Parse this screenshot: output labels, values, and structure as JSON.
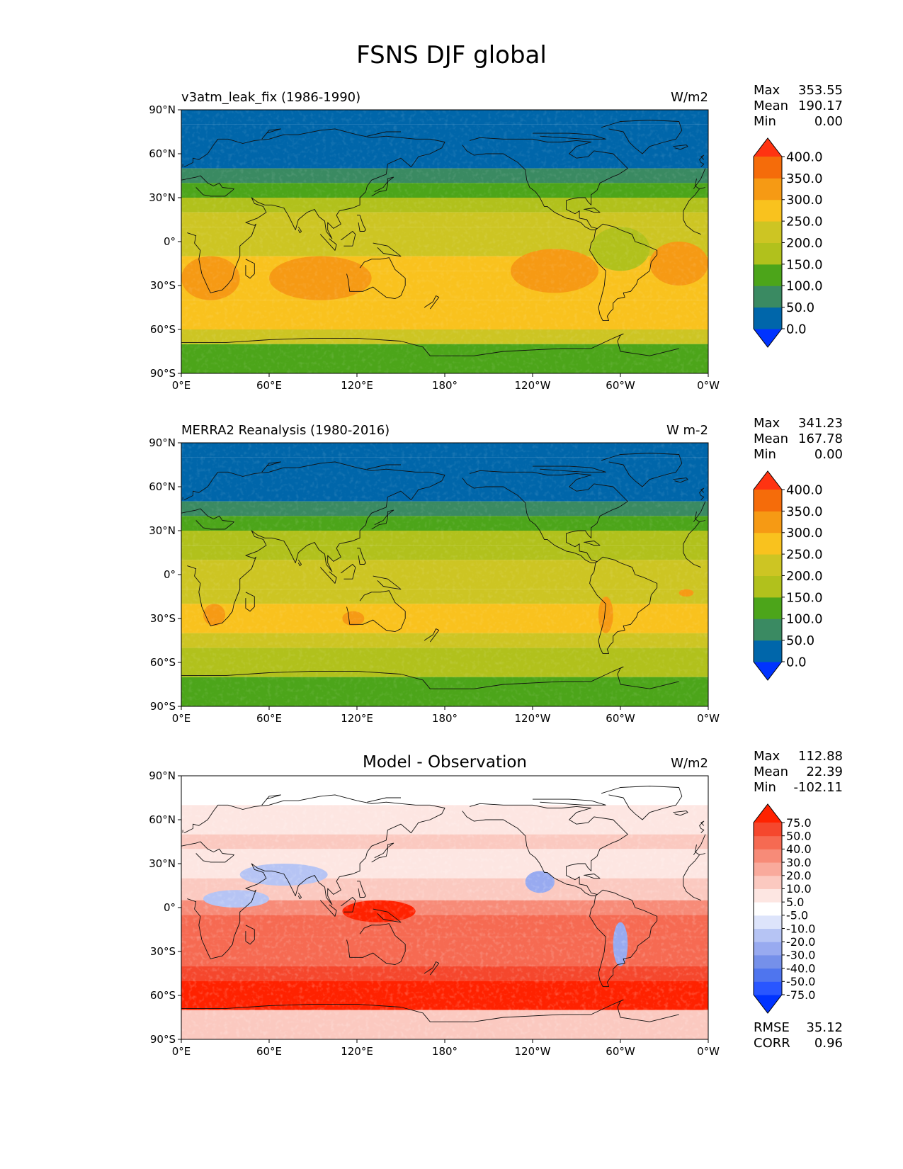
{
  "figure": {
    "title": "FSNS DJF global"
  },
  "panels": [
    {
      "left_title": "v3atm_leak_fix (1986-1990)",
      "center_title": "",
      "units": "W/m2",
      "stats": [
        {
          "label": "Max",
          "value": "353.55"
        },
        {
          "label": "Mean",
          "value": "190.17"
        },
        {
          "label": "Min",
          "value": "0.00"
        }
      ],
      "extra_stats": []
    },
    {
      "left_title": "MERRA2 Reanalysis (1980-2016)",
      "center_title": "",
      "units": "W m-2",
      "stats": [
        {
          "label": "Max",
          "value": "341.23"
        },
        {
          "label": "Mean",
          "value": "167.78"
        },
        {
          "label": "Min",
          "value": "0.00"
        }
      ],
      "extra_stats": []
    },
    {
      "left_title": "",
      "center_title": "Model - Observation",
      "units": "W/m2",
      "stats": [
        {
          "label": "Max",
          "value": "112.88"
        },
        {
          "label": "Mean",
          "value": "22.39"
        },
        {
          "label": "Min",
          "value": "-102.11"
        }
      ],
      "extra_stats": [
        {
          "label": "RMSE",
          "value": "35.12"
        },
        {
          "label": "CORR",
          "value": "0.96"
        }
      ]
    }
  ],
  "chart_data": [
    {
      "type": "heatmap",
      "title": "v3atm_leak_fix (1986-1990)",
      "variable": "FSNS",
      "season": "DJF",
      "region": "global",
      "units": "W/m2",
      "x_ticks": [
        "0°E",
        "60°E",
        "120°E",
        "180°",
        "120°W",
        "60°W",
        "0°W"
      ],
      "y_ticks": [
        "90°N",
        "60°N",
        "30°N",
        "0°",
        "30°S",
        "60°S",
        "90°S"
      ],
      "xlim": [
        0,
        360
      ],
      "ylim": [
        -90,
        90
      ],
      "colorbar": {
        "levels": [
          "0.0",
          "50.0",
          "100.0",
          "150.0",
          "200.0",
          "250.0",
          "300.0",
          "350.0",
          "400.0"
        ],
        "colors": [
          "#0033ff",
          "#0066aa",
          "#3a8a62",
          "#4ca51a",
          "#b1c11c",
          "#cdc523",
          "#f9c21e",
          "#f69a14",
          "#f56c0a",
          "#ff3311"
        ]
      },
      "zonal_bands": [
        {
          "lat": [
            80,
            90
          ],
          "value": 0
        },
        {
          "lat": [
            50,
            80
          ],
          "value": 30
        },
        {
          "lat": [
            40,
            50
          ],
          "value": 80
        },
        {
          "lat": [
            30,
            40
          ],
          "value": 130
        },
        {
          "lat": [
            20,
            30
          ],
          "value": 175
        },
        {
          "lat": [
            10,
            20
          ],
          "value": 210
        },
        {
          "lat": [
            -10,
            10
          ],
          "value": 225
        },
        {
          "lat": [
            -20,
            -10
          ],
          "value": 265
        },
        {
          "lat": [
            -40,
            -20
          ],
          "value": 290
        },
        {
          "lat": [
            -60,
            -40
          ],
          "value": 260
        },
        {
          "lat": [
            -70,
            -60
          ],
          "value": 205
        },
        {
          "lat": [
            -90,
            -70
          ],
          "value": 110
        }
      ],
      "regional_features": [
        {
          "lon": [
            60,
            130
          ],
          "lat": [
            -40,
            -10
          ],
          "value": 305
        },
        {
          "lon": [
            225,
            285
          ],
          "lat": [
            -35,
            -5
          ],
          "value": 305
        },
        {
          "lon": [
            320,
            360
          ],
          "lat": [
            -30,
            0
          ],
          "value": 305
        },
        {
          "lon": [
            0,
            40
          ],
          "lat": [
            -40,
            -10
          ],
          "value": 305
        },
        {
          "lon": [
            280,
            320
          ],
          "lat": [
            -20,
            10
          ],
          "value": 160
        }
      ],
      "stats": {
        "max": 353.55,
        "mean": 190.17,
        "min": 0.0
      }
    },
    {
      "type": "heatmap",
      "title": "MERRA2 Reanalysis (1980-2016)",
      "variable": "FSNS",
      "season": "DJF",
      "region": "global",
      "units": "W m-2",
      "x_ticks": [
        "0°E",
        "60°E",
        "120°E",
        "180°",
        "120°W",
        "60°W",
        "0°W"
      ],
      "y_ticks": [
        "90°N",
        "60°N",
        "30°N",
        "0°",
        "30°S",
        "60°S",
        "90°S"
      ],
      "xlim": [
        0,
        360
      ],
      "ylim": [
        -90,
        90
      ],
      "colorbar": {
        "levels": [
          "0.0",
          "50.0",
          "100.0",
          "150.0",
          "200.0",
          "250.0",
          "300.0",
          "350.0",
          "400.0"
        ],
        "colors": [
          "#0033ff",
          "#0066aa",
          "#3a8a62",
          "#4ca51a",
          "#b1c11c",
          "#cdc523",
          "#f9c21e",
          "#f69a14",
          "#f56c0a",
          "#ff3311"
        ]
      },
      "zonal_bands": [
        {
          "lat": [
            80,
            90
          ],
          "value": 0
        },
        {
          "lat": [
            50,
            80
          ],
          "value": 30
        },
        {
          "lat": [
            40,
            50
          ],
          "value": 80
        },
        {
          "lat": [
            30,
            40
          ],
          "value": 120
        },
        {
          "lat": [
            20,
            30
          ],
          "value": 160
        },
        {
          "lat": [
            10,
            20
          ],
          "value": 190
        },
        {
          "lat": [
            -10,
            10
          ],
          "value": 205
        },
        {
          "lat": [
            -20,
            -10
          ],
          "value": 230
        },
        {
          "lat": [
            -40,
            -20
          ],
          "value": 255
        },
        {
          "lat": [
            -50,
            -40
          ],
          "value": 210
        },
        {
          "lat": [
            -70,
            -50
          ],
          "value": 170
        },
        {
          "lat": [
            -90,
            -70
          ],
          "value": 110
        }
      ],
      "regional_features": [
        {
          "lon": [
            15,
            30
          ],
          "lat": [
            -35,
            -20
          ],
          "value": 305
        },
        {
          "lon": [
            110,
            125
          ],
          "lat": [
            -35,
            -25
          ],
          "value": 305
        },
        {
          "lon": [
            285,
            295
          ],
          "lat": [
            -40,
            -15
          ],
          "value": 305
        },
        {
          "lon": [
            340,
            350
          ],
          "lat": [
            -15,
            -10
          ],
          "value": 305
        }
      ],
      "stats": {
        "max": 341.23,
        "mean": 167.78,
        "min": 0.0
      }
    },
    {
      "type": "heatmap",
      "title": "Model - Observation",
      "variable": "FSNS",
      "season": "DJF",
      "region": "global",
      "units": "W/m2",
      "x_ticks": [
        "0°E",
        "60°E",
        "120°E",
        "180°",
        "120°W",
        "60°W",
        "0°W"
      ],
      "y_ticks": [
        "90°N",
        "60°N",
        "30°N",
        "0°",
        "30°S",
        "60°S",
        "90°S"
      ],
      "xlim": [
        0,
        360
      ],
      "ylim": [
        -90,
        90
      ],
      "colorbar": {
        "levels": [
          "-75.0",
          "-50.0",
          "-40.0",
          "-30.0",
          "-20.0",
          "-10.0",
          "-5.0",
          "5.0",
          "10.0",
          "20.0",
          "30.0",
          "40.0",
          "50.0",
          "75.0"
        ],
        "colors": [
          "#0033ff",
          "#2956ff",
          "#4f75ee",
          "#7590ea",
          "#98aaf0",
          "#b6c4f4",
          "#dde4fb",
          "#ffffff",
          "#fde6e2",
          "#fbc9c0",
          "#f9aa9c",
          "#f78b78",
          "#f66a52",
          "#f5472d",
          "#ff2200"
        ]
      },
      "zonal_bands": [
        {
          "lat": [
            70,
            90
          ],
          "value": 0
        },
        {
          "lat": [
            50,
            70
          ],
          "value": 8
        },
        {
          "lat": [
            40,
            50
          ],
          "value": 15
        },
        {
          "lat": [
            20,
            40
          ],
          "value": 6
        },
        {
          "lat": [
            5,
            20
          ],
          "value": 12
        },
        {
          "lat": [
            -5,
            5
          ],
          "value": 35
        },
        {
          "lat": [
            -20,
            -5
          ],
          "value": 45
        },
        {
          "lat": [
            -40,
            -20
          ],
          "value": 42
        },
        {
          "lat": [
            -50,
            -40
          ],
          "value": 55
        },
        {
          "lat": [
            -70,
            -50
          ],
          "value": 80
        },
        {
          "lat": [
            -90,
            -70
          ],
          "value": 12
        }
      ],
      "regional_features": [
        {
          "lon": [
            40,
            100
          ],
          "lat": [
            15,
            30
          ],
          "value": -12
        },
        {
          "lon": [
            15,
            60
          ],
          "lat": [
            0,
            12
          ],
          "value": -15
        },
        {
          "lon": [
            235,
            255
          ],
          "lat": [
            10,
            25
          ],
          "value": -25
        },
        {
          "lon": [
            295,
            305
          ],
          "lat": [
            -40,
            -10
          ],
          "value": -30
        },
        {
          "lon": [
            110,
            160
          ],
          "lat": [
            -10,
            5
          ],
          "value": 80
        }
      ],
      "stats": {
        "max": 112.88,
        "mean": 22.39,
        "min": -102.11,
        "rmse": 35.12,
        "corr": 0.96
      }
    }
  ]
}
